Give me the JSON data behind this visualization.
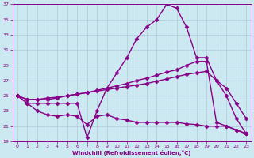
{
  "xlabel": "Windchill (Refroidissement éolien,°C)",
  "xlim": [
    -0.5,
    23.5
  ],
  "ylim": [
    19,
    37
  ],
  "yticks": [
    19,
    21,
    23,
    25,
    27,
    29,
    31,
    33,
    35,
    37
  ],
  "xticks": [
    0,
    1,
    2,
    3,
    4,
    5,
    6,
    7,
    8,
    9,
    10,
    11,
    12,
    13,
    14,
    15,
    16,
    17,
    18,
    19,
    20,
    21,
    22,
    23
  ],
  "bg_color": "#cce8f0",
  "grid_color": "#aaccdd",
  "line_color": "#880088",
  "line_width": 1.0,
  "marker": "D",
  "marker_size": 2.5,
  "series": [
    {
      "x": [
        0,
        1,
        2,
        3,
        4,
        5,
        6,
        7,
        8,
        9,
        10,
        11,
        12,
        13,
        14,
        15,
        16,
        17,
        18,
        19,
        20,
        21,
        22,
        23
      ],
      "y": [
        25,
        24,
        24,
        24,
        24,
        24,
        24,
        19.5,
        23,
        26,
        28,
        30,
        32.5,
        34,
        35,
        37,
        36.5,
        34,
        30,
        30,
        27,
        25,
        22,
        20
      ]
    },
    {
      "x": [
        0,
        1,
        2,
        3,
        4,
        5,
        6,
        7,
        8,
        9,
        10,
        11,
        12,
        13,
        14,
        15,
        16,
        17,
        18,
        19,
        20,
        21,
        22,
        23
      ],
      "y": [
        25,
        24.5,
        24.5,
        24.5,
        24.7,
        25,
        25.2,
        25.4,
        25.7,
        26,
        26.3,
        26.6,
        27,
        27.3,
        27.7,
        28.1,
        28.4,
        29,
        29.5,
        29.5,
        21.5,
        21,
        20.5,
        20
      ]
    },
    {
      "x": [
        0,
        1,
        2,
        3,
        4,
        5,
        6,
        7,
        8,
        9,
        10,
        11,
        12,
        13,
        14,
        15,
        16,
        17,
        18,
        19,
        20,
        21,
        22,
        23
      ],
      "y": [
        25,
        24.5,
        24.5,
        24.7,
        24.8,
        25,
        25.2,
        25.4,
        25.6,
        25.8,
        26.0,
        26.2,
        26.4,
        26.6,
        26.9,
        27.2,
        27.5,
        27.8,
        28,
        28.2,
        27,
        26,
        24,
        22
      ]
    },
    {
      "x": [
        0,
        1,
        2,
        3,
        4,
        5,
        6,
        7,
        8,
        9,
        10,
        11,
        12,
        13,
        14,
        15,
        16,
        17,
        18,
        19,
        20,
        21,
        22,
        23
      ],
      "y": [
        25,
        24,
        23,
        22.5,
        22.3,
        22.5,
        22.3,
        21.2,
        22.3,
        22.5,
        22,
        21.8,
        21.5,
        21.5,
        21.5,
        21.5,
        21.5,
        21.3,
        21.2,
        21,
        21,
        21,
        20.5,
        20
      ]
    }
  ]
}
